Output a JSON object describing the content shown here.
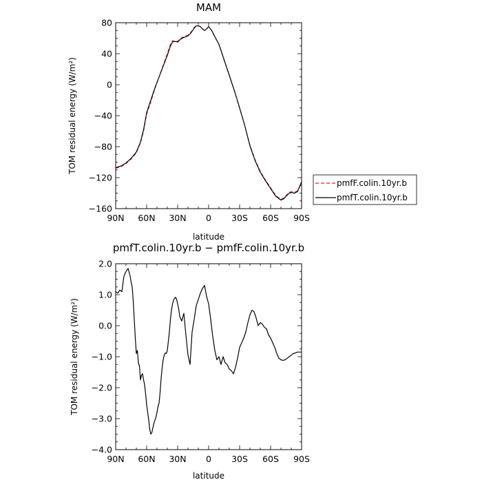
{
  "chart_data": [
    {
      "type": "line",
      "title": "MAM",
      "xlabel": "latitude",
      "ylabel": "TOM residual energy (W/m²)",
      "x_tick_labels": [
        "90N",
        "60N",
        "30N",
        "0",
        "30S",
        "60S",
        "90S"
      ],
      "x_tick_values": [
        90,
        60,
        30,
        0,
        -30,
        -60,
        -90
      ],
      "xlim": [
        90,
        -90
      ],
      "ylim": [
        -160,
        80
      ],
      "y_tick_values": [
        -160,
        -120,
        -80,
        -40,
        0,
        40,
        80
      ],
      "y_tick_labels": [
        "−160",
        "−120",
        "−80",
        "−40",
        "0",
        "40",
        "80"
      ],
      "legend_position": "right",
      "series": [
        {
          "name": "pmfF.colin.10yr.b",
          "color": "#d62728",
          "dash": "dashed",
          "x": [
            90,
            85,
            80,
            75,
            70,
            66,
            63,
            60,
            56,
            52,
            48,
            44,
            40,
            37,
            35,
            33,
            30,
            27,
            24,
            20,
            17,
            14,
            12,
            10,
            8,
            6,
            4,
            2,
            0,
            -3,
            -6,
            -10,
            -15,
            -20,
            -25,
            -30,
            -35,
            -40,
            -45,
            -50,
            -55,
            -60,
            -65,
            -70,
            -73,
            -75,
            -78,
            -80,
            -83,
            -86,
            -88,
            -90
          ],
          "y": [
            -108,
            -106,
            -102,
            -96,
            -88,
            -75,
            -60,
            -38,
            -22,
            -5,
            10,
            25,
            40,
            52,
            57,
            56,
            56,
            60,
            62,
            64,
            68,
            74,
            76,
            76,
            75,
            72,
            70,
            72,
            75,
            70,
            62,
            52,
            32,
            12,
            -8,
            -30,
            -53,
            -78,
            -97,
            -112,
            -123,
            -133,
            -143,
            -148,
            -146,
            -143,
            -139,
            -138,
            -139,
            -137,
            -132,
            -126
          ]
        },
        {
          "name": "pmfT.colin.10yr.b",
          "color": "#000000",
          "dash": "solid",
          "x": [
            90,
            85,
            80,
            75,
            70,
            66,
            63,
            60,
            56,
            52,
            48,
            44,
            40,
            37,
            35,
            33,
            30,
            27,
            24,
            20,
            17,
            14,
            12,
            10,
            8,
            6,
            4,
            2,
            0,
            -3,
            -6,
            -10,
            -15,
            -20,
            -25,
            -30,
            -35,
            -40,
            -45,
            -50,
            -55,
            -60,
            -65,
            -70,
            -73,
            -75,
            -78,
            -80,
            -83,
            -86,
            -88,
            -90
          ],
          "y": [
            -107,
            -105,
            -101,
            -95,
            -87,
            -74,
            -58,
            -36,
            -20,
            -4,
            10,
            24,
            38,
            50,
            55,
            56,
            55,
            59,
            61,
            63,
            67,
            73,
            76,
            76,
            75,
            72,
            70,
            72,
            75,
            70,
            62,
            52,
            32,
            12,
            -8,
            -30,
            -53,
            -79,
            -98,
            -113,
            -124,
            -134,
            -144,
            -149,
            -147,
            -144,
            -140,
            -139,
            -140,
            -138,
            -132,
            -125
          ]
        }
      ]
    },
    {
      "type": "line",
      "title": "pmfT.colin.10yr.b − pmfF.colin.10yr.b",
      "xlabel": "latitude",
      "ylabel": "TOM residual energy (W/m²)",
      "x_tick_labels": [
        "90N",
        "60N",
        "30N",
        "0",
        "30S",
        "60S",
        "90S"
      ],
      "x_tick_values": [
        90,
        60,
        30,
        0,
        -30,
        -60,
        -90
      ],
      "xlim": [
        90,
        -90
      ],
      "ylim": [
        -4.0,
        2.0
      ],
      "y_tick_values": [
        -4.0,
        -3.0,
        -2.0,
        -1.0,
        0.0,
        1.0,
        2.0
      ],
      "y_tick_labels": [
        "−4.0",
        "−3.0",
        "−2.0",
        "−1.0",
        "0.0",
        "1.0",
        "2.0"
      ],
      "series": [
        {
          "color": "#000000",
          "dash": "solid",
          "x": [
            90,
            88,
            86,
            84,
            82,
            80,
            78,
            77,
            76,
            75,
            74,
            73,
            72,
            71,
            70,
            69,
            68,
            67,
            66,
            65,
            64,
            63,
            62,
            61,
            60,
            59,
            58,
            57,
            56,
            55,
            54,
            53,
            52,
            51,
            50,
            49,
            48,
            47,
            46,
            45,
            44,
            43,
            42,
            41,
            40,
            39,
            38,
            37,
            36,
            35,
            34,
            33,
            32,
            31,
            30,
            29,
            28,
            26,
            24,
            22,
            20,
            18,
            16,
            14,
            12,
            10,
            8,
            6,
            4,
            2,
            0,
            -2,
            -4,
            -6,
            -8,
            -10,
            -12,
            -14,
            -16,
            -18,
            -20,
            -22,
            -24,
            -26,
            -28,
            -30,
            -32,
            -34,
            -36,
            -38,
            -40,
            -42,
            -44,
            -46,
            -48,
            -50,
            -52,
            -54,
            -56,
            -58,
            -60,
            -62,
            -64,
            -66,
            -68,
            -70,
            -72,
            -74,
            -76,
            -78,
            -80,
            -82,
            -84,
            -86,
            -88,
            -90
          ],
          "y": [
            1.1,
            1.05,
            1.15,
            1.1,
            1.6,
            1.75,
            1.85,
            1.72,
            1.6,
            1.4,
            1.25,
            0.8,
            0.2,
            -0.4,
            -0.9,
            -0.8,
            -1.2,
            -1.3,
            -1.75,
            -1.6,
            -1.55,
            -1.75,
            -1.9,
            -2.2,
            -2.55,
            -2.8,
            -3.05,
            -3.35,
            -3.5,
            -3.45,
            -3.3,
            -3.15,
            -3.05,
            -2.95,
            -2.8,
            -2.6,
            -2.5,
            -2.15,
            -1.7,
            -1.35,
            -1.1,
            -0.95,
            -0.88,
            -0.9,
            -0.8,
            -0.5,
            -0.2,
            0.2,
            0.5,
            0.7,
            0.82,
            0.88,
            0.92,
            0.85,
            0.7,
            0.55,
            0.3,
            0.15,
            0.4,
            -0.3,
            -0.95,
            -1.25,
            -0.2,
            0.2,
            0.65,
            0.85,
            1.05,
            1.2,
            1.3,
            0.95,
            0.7,
            0.2,
            -0.35,
            -0.8,
            -1.1,
            -1.0,
            -1.25,
            -1.0,
            -1.2,
            -1.25,
            -1.4,
            -1.45,
            -1.55,
            -1.35,
            -1.05,
            -0.7,
            -0.55,
            -0.4,
            -0.2,
            0.1,
            0.35,
            0.5,
            0.45,
            0.25,
            0.0,
            0.1,
            0.05,
            -0.05,
            -0.1,
            -0.3,
            -0.4,
            -0.55,
            -0.7,
            -0.9,
            -1.05,
            -1.1,
            -1.12,
            -1.1,
            -1.05,
            -1.0,
            -0.95,
            -0.9,
            -0.88,
            -0.85,
            -0.85,
            -0.85
          ]
        }
      ]
    }
  ]
}
